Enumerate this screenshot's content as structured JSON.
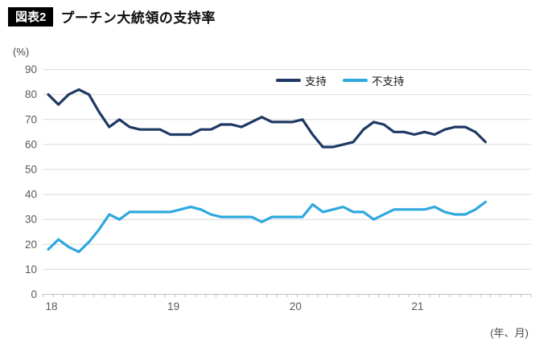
{
  "figure": {
    "tag": "図表2",
    "title": "プーチン大統領の支持率"
  },
  "chart_data": {
    "type": "line",
    "title": "プーチン大統領の支持率",
    "y_unit_label": "(%)",
    "x_unit_label": "(年、月)",
    "ylim": [
      0,
      90
    ],
    "y_ticks": [
      0,
      10,
      20,
      30,
      40,
      50,
      60,
      70,
      80,
      90
    ],
    "x_tick_labels": [
      "18",
      "19",
      "20",
      "21"
    ],
    "x_range_note": "monthly points, Jan 2018 - Aug 2021",
    "grid": "horizontal-light-gray",
    "legend_position": "top-center",
    "legend": [
      {
        "name": "支持",
        "color": "#1f3864"
      },
      {
        "name": "不支持",
        "color": "#2fa8df"
      }
    ],
    "series": [
      {
        "name": "支持",
        "color": "#1f3864",
        "values": [
          80,
          76,
          80,
          82,
          80,
          73,
          67,
          70,
          67,
          66,
          66,
          66,
          64,
          64,
          64,
          66,
          66,
          68,
          68,
          67,
          69,
          71,
          69,
          69,
          69,
          70,
          64,
          59,
          59,
          60,
          61,
          66,
          69,
          68,
          65,
          65,
          64,
          65,
          64,
          66,
          67,
          67,
          65,
          61
        ]
      },
      {
        "name": "不支持",
        "color": "#2fa8df",
        "values": [
          18,
          22,
          19,
          17,
          21,
          26,
          32,
          30,
          33,
          33,
          33,
          33,
          33,
          34,
          35,
          34,
          32,
          31,
          31,
          31,
          31,
          29,
          31,
          31,
          31,
          31,
          36,
          33,
          34,
          35,
          33,
          33,
          30,
          32,
          34,
          34,
          34,
          34,
          35,
          33,
          32,
          32,
          34,
          37
        ]
      }
    ]
  },
  "style": {
    "gridline_color": "#d9d9d9",
    "axis_color": "#bfbfbf",
    "axis_label_color": "#595959"
  }
}
